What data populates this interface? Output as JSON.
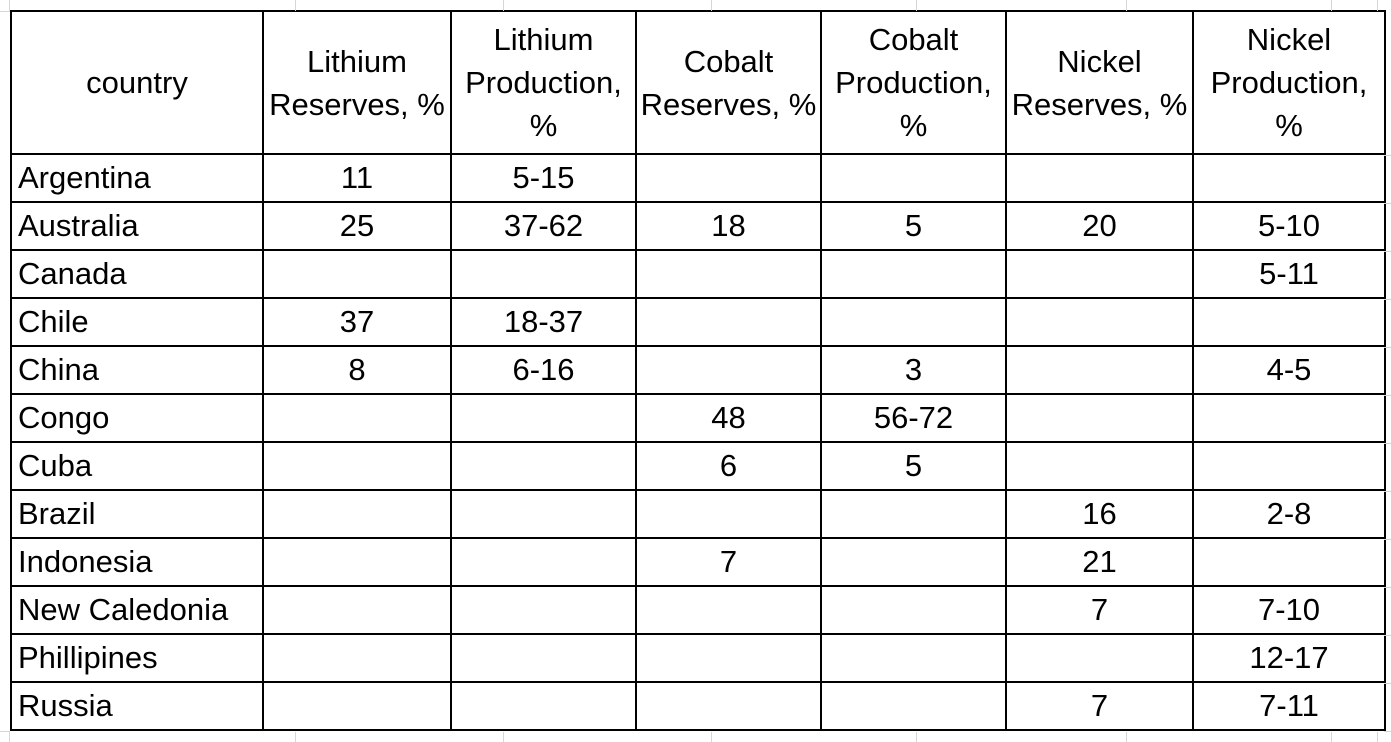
{
  "colors": {
    "table_border": "#000000",
    "spreadsheet_gridline": "#d6d6d6",
    "text": "#000000",
    "background": "#ffffff"
  },
  "header_display": [
    "country",
    "Lithium\nReserves, %",
    "Lithium\nProduction,\n%",
    "Cobalt\nReserves, %",
    "Cobalt\nProduction,\n%",
    "Nickel\nReserves, %",
    "Nickel\nProduction,\n%"
  ],
  "chart_data": {
    "type": "table",
    "columns": [
      "country",
      "Lithium Reserves, %",
      "Lithium Production, %",
      "Cobalt Reserves, %",
      "Cobalt Production, %",
      "Nickel Reserves, %",
      "Nickel Production, %"
    ],
    "rows": [
      [
        "Argentina",
        "11",
        "5-15",
        "",
        "",
        "",
        ""
      ],
      [
        "Australia",
        "25",
        "37-62",
        "18",
        "5",
        "20",
        "5-10"
      ],
      [
        "Canada",
        "",
        "",
        "",
        "",
        "",
        "5-11"
      ],
      [
        "Chile",
        "37",
        "18-37",
        "",
        "",
        "",
        ""
      ],
      [
        "China",
        "8",
        "6-16",
        "",
        "3",
        "",
        "4-5"
      ],
      [
        "Congo",
        "",
        "",
        "48",
        "56-72",
        "",
        ""
      ],
      [
        "Cuba",
        "",
        "",
        "6",
        "5",
        "",
        ""
      ],
      [
        "Brazil",
        "",
        "",
        "",
        "",
        "16",
        "2-8"
      ],
      [
        "Indonesia",
        "",
        "",
        "7",
        "",
        "21",
        ""
      ],
      [
        "New Caledonia",
        "",
        "",
        "",
        "",
        "7",
        "7-10"
      ],
      [
        "Phillipines",
        "",
        "",
        "",
        "",
        "",
        "12-17"
      ],
      [
        "Russia",
        "",
        "",
        "",
        "",
        "7",
        "7-11"
      ]
    ]
  }
}
